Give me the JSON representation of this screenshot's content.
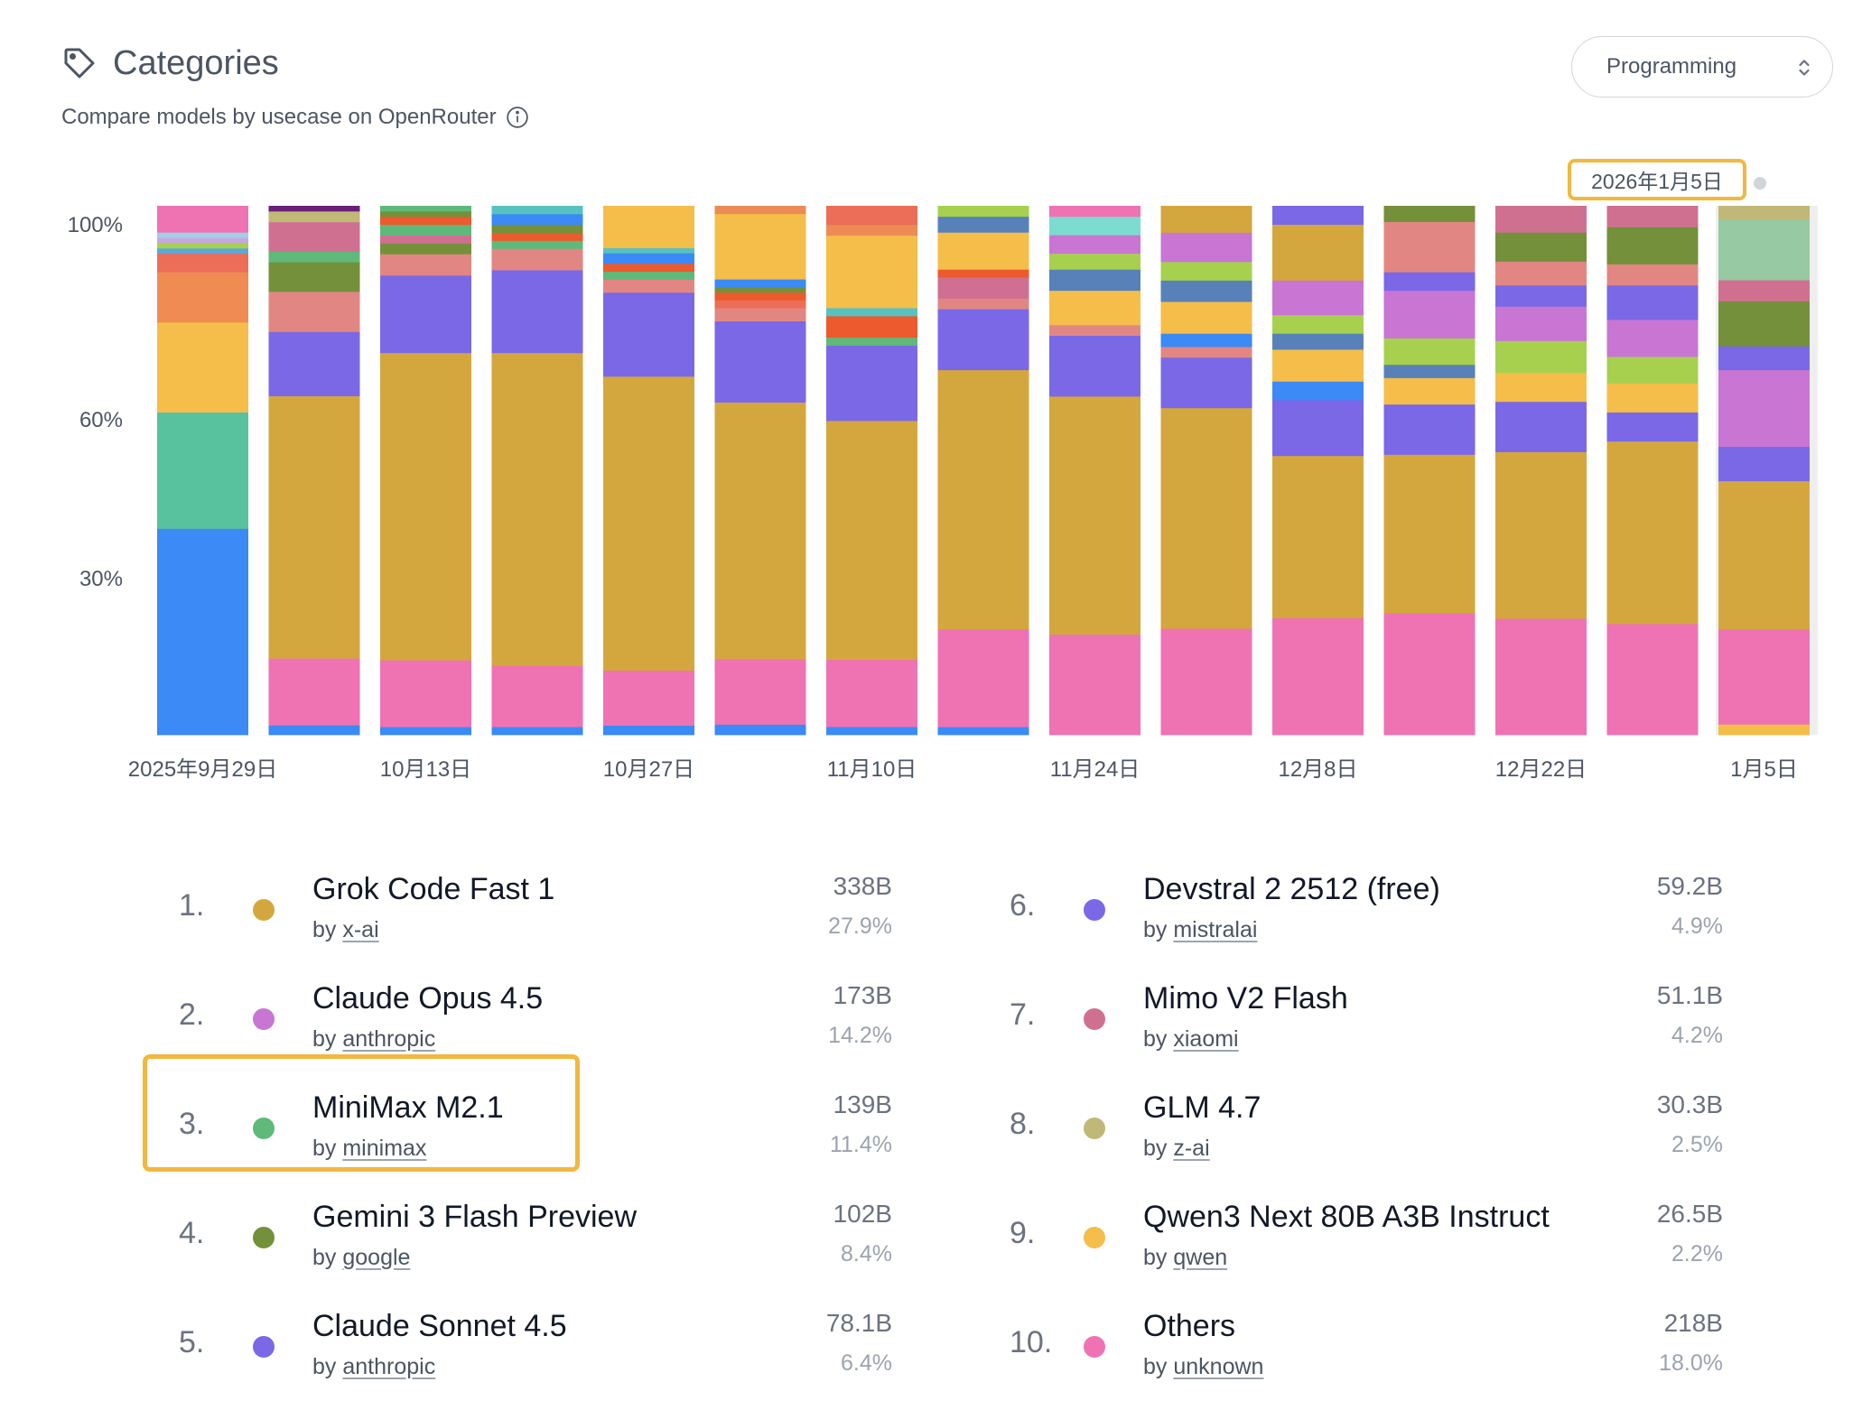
{
  "header": {
    "title": "Categories",
    "subtitle": "Compare models by usecase on OpenRouter",
    "select_value": "Programming",
    "tooltip_date": "2026年1月5日"
  },
  "chart_data": {
    "type": "bar",
    "stacked": true,
    "y_ticks": [
      "100%",
      "60%",
      "30%"
    ],
    "x_tick_labels": [
      "2025年9月29日",
      "10月13日",
      "10月27日",
      "11月10日",
      "11月24日",
      "12月8日",
      "12月22日",
      "1月5日"
    ],
    "bars": [
      {
        "segments": [
          [
            39,
            "#3b8af5"
          ],
          [
            22,
            "#58c29e"
          ],
          [
            17,
            "#f5bd4a"
          ],
          [
            9.5,
            "#f08b54"
          ],
          [
            3.5,
            "#ec6e58"
          ],
          [
            1,
            "#5ba8d8"
          ],
          [
            1,
            "#a7d04f"
          ],
          [
            1,
            "#c8a7e0"
          ],
          [
            1,
            "#9fd0e6"
          ],
          [
            5,
            "#ef72b3"
          ]
        ]
      },
      {
        "segments": [
          [
            1.8,
            "#3b8af5"
          ],
          [
            12.5,
            "#ef72b3"
          ],
          [
            49,
            "#d4a73e"
          ],
          [
            12,
            "#7a68e6"
          ],
          [
            7.5,
            "#e28683"
          ],
          [
            5.5,
            "#74903a"
          ],
          [
            2,
            "#5fb97a"
          ],
          [
            5.5,
            "#d07090"
          ],
          [
            2,
            "#c0b877"
          ],
          [
            1,
            "#6a2077"
          ]
        ]
      },
      {
        "segments": [
          [
            1.5,
            "#3b8af5"
          ],
          [
            12.5,
            "#ef72b3"
          ],
          [
            57.5,
            "#d4a73e"
          ],
          [
            14.5,
            "#7a68e6"
          ],
          [
            4,
            "#e28683"
          ],
          [
            2,
            "#74903a"
          ],
          [
            1.5,
            "#d07090"
          ],
          [
            2,
            "#5fb97a"
          ],
          [
            1.5,
            "#ec5a2e"
          ],
          [
            1,
            "#74903a"
          ],
          [
            1,
            "#5fb97a"
          ]
        ]
      },
      {
        "segments": [
          [
            1.5,
            "#3b8af5"
          ],
          [
            11.5,
            "#ef72b3"
          ],
          [
            58.5,
            "#d4a73e"
          ],
          [
            15.5,
            "#7a68e6"
          ],
          [
            4,
            "#e28683"
          ],
          [
            1.5,
            "#5fb97a"
          ],
          [
            1.5,
            "#ec5a2e"
          ],
          [
            1.5,
            "#74903a"
          ],
          [
            2,
            "#3b8af5"
          ],
          [
            1.5,
            "#58c2c2"
          ]
        ]
      },
      {
        "segments": [
          [
            1.8,
            "#3b8af5"
          ],
          [
            10.5,
            "#ef72b3"
          ],
          [
            56,
            "#d4a73e"
          ],
          [
            16,
            "#7a68e6"
          ],
          [
            2.5,
            "#e28683"
          ],
          [
            1.5,
            "#5fb97a"
          ],
          [
            1.5,
            "#ec5a2e"
          ],
          [
            2,
            "#3b8af5"
          ],
          [
            1,
            "#58c2c2"
          ],
          [
            8,
            "#f5bd4a"
          ]
        ]
      },
      {
        "segments": [
          [
            2,
            "#3b8af5"
          ],
          [
            12.5,
            "#ef72b3"
          ],
          [
            49,
            "#d4a73e"
          ],
          [
            15.5,
            "#7a68e6"
          ],
          [
            2.5,
            "#e28683"
          ],
          [
            1.5,
            "#ec6e58"
          ],
          [
            1.5,
            "#ec5a2e"
          ],
          [
            1,
            "#74903a"
          ],
          [
            1.5,
            "#3b8af5"
          ],
          [
            12.5,
            "#f5bd4a"
          ],
          [
            1.5,
            "#ec8b54"
          ]
        ]
      },
      {
        "segments": [
          [
            1.5,
            "#3b8af5"
          ],
          [
            12.5,
            "#ef72b3"
          ],
          [
            44.5,
            "#d4a73e"
          ],
          [
            14,
            "#7a68e6"
          ],
          [
            1.5,
            "#5fb97a"
          ],
          [
            4,
            "#ec5a2e"
          ],
          [
            1.5,
            "#58c2c2"
          ],
          [
            13.5,
            "#f5bd4a"
          ],
          [
            2,
            "#ec8b54"
          ],
          [
            3.5,
            "#ec6e58"
          ]
        ]
      },
      {
        "segments": [
          [
            1.5,
            "#3b8af5"
          ],
          [
            18.5,
            "#ef72b3"
          ],
          [
            49,
            "#d4a73e"
          ],
          [
            11.5,
            "#7a68e6"
          ],
          [
            2,
            "#e28683"
          ],
          [
            4,
            "#d07090"
          ],
          [
            1.5,
            "#ec5a2e"
          ],
          [
            7,
            "#f5bd4a"
          ],
          [
            3,
            "#5781b8"
          ],
          [
            2,
            "#a7d04f"
          ]
        ]
      },
      {
        "segments": [
          [
            19,
            "#ef72b3"
          ],
          [
            45,
            "#d4a73e"
          ],
          [
            11.5,
            "#7a68e6"
          ],
          [
            2,
            "#e28683"
          ],
          [
            6.5,
            "#f5bd4a"
          ],
          [
            4,
            "#5781b8"
          ],
          [
            3,
            "#a7d04f"
          ],
          [
            3.5,
            "#c875d4"
          ],
          [
            3.5,
            "#7ddbd0"
          ],
          [
            2,
            "#ef72b3"
          ]
        ]
      },
      {
        "segments": [
          [
            20,
            "#ef72b3"
          ],
          [
            41.5,
            "#d4a73e"
          ],
          [
            9.5,
            "#7a68e6"
          ],
          [
            2,
            "#e28683"
          ],
          [
            2.5,
            "#3b8af5"
          ],
          [
            6,
            "#f5bd4a"
          ],
          [
            4,
            "#5781b8"
          ],
          [
            3.5,
            "#a7d04f"
          ],
          [
            5.5,
            "#c875d4"
          ],
          [
            5,
            "#d4a73e"
          ]
        ]
      },
      {
        "segments": [
          [
            22,
            "#ef72b3"
          ],
          [
            30.5,
            "#d4a73e"
          ],
          [
            10.5,
            "#7a68e6"
          ],
          [
            3.5,
            "#3b8af5"
          ],
          [
            6,
            "#f5bd4a"
          ],
          [
            3,
            "#5781b8"
          ],
          [
            3.5,
            "#a7d04f"
          ],
          [
            6.5,
            "#c875d4"
          ],
          [
            10.5,
            "#d4a73e"
          ],
          [
            3.5,
            "#7a68e6"
          ]
        ]
      },
      {
        "segments": [
          [
            23,
            "#ef72b3"
          ],
          [
            30,
            "#d4a73e"
          ],
          [
            9.5,
            "#7a68e6"
          ],
          [
            5,
            "#f5bd4a"
          ],
          [
            2.5,
            "#5781b8"
          ],
          [
            5,
            "#a7d04f"
          ],
          [
            9,
            "#c875d4"
          ],
          [
            3.5,
            "#7a68e6"
          ],
          [
            9.5,
            "#e28683"
          ],
          [
            3,
            "#74903a"
          ]
        ]
      },
      {
        "segments": [
          [
            22,
            "#ef72b3"
          ],
          [
            31.5,
            "#d4a73e"
          ],
          [
            9.5,
            "#7a68e6"
          ],
          [
            5.5,
            "#f5bd4a"
          ],
          [
            6,
            "#a7d04f"
          ],
          [
            6.5,
            "#c875d4"
          ],
          [
            4,
            "#7a68e6"
          ],
          [
            4.5,
            "#e28683"
          ],
          [
            5.5,
            "#74903a"
          ],
          [
            5,
            "#d07090"
          ]
        ]
      },
      {
        "segments": [
          [
            21,
            "#ef72b3"
          ],
          [
            34.5,
            "#d4a73e"
          ],
          [
            5.5,
            "#7a68e6"
          ],
          [
            5.5,
            "#f5bd4a"
          ],
          [
            5,
            "#a7d04f"
          ],
          [
            7,
            "#c875d4"
          ],
          [
            6.5,
            "#7a68e6"
          ],
          [
            4,
            "#e28683"
          ],
          [
            7,
            "#74903a"
          ],
          [
            4,
            "#d07090"
          ]
        ]
      },
      {
        "segments": [
          [
            2,
            "#f5bd4a"
          ],
          [
            18,
            "#ef72b3"
          ],
          [
            28,
            "#d4a73e"
          ],
          [
            6.5,
            "#7a68e6"
          ],
          [
            14.5,
            "#c875d4"
          ],
          [
            4.5,
            "#7a68e6"
          ],
          [
            8.5,
            "#74903a"
          ],
          [
            4,
            "#d07090"
          ],
          [
            11.5,
            "#97c9a2"
          ],
          [
            2.5,
            "#c0b877"
          ]
        ]
      }
    ]
  },
  "legend": [
    {
      "rank": "1.",
      "name": "Grok Code Fast 1",
      "by": "by",
      "author": "x-ai",
      "tokens": "338B",
      "pct": "27.9%",
      "color": "#d4a73e"
    },
    {
      "rank": "2.",
      "name": "Claude Opus 4.5",
      "by": "by",
      "author": "anthropic",
      "tokens": "173B",
      "pct": "14.2%",
      "color": "#c875d4"
    },
    {
      "rank": "3.",
      "name": "MiniMax M2.1",
      "by": "by",
      "author": "minimax",
      "tokens": "139B",
      "pct": "11.4%",
      "color": "#5fb97a"
    },
    {
      "rank": "4.",
      "name": "Gemini 3 Flash Preview",
      "by": "by",
      "author": "google",
      "tokens": "102B",
      "pct": "8.4%",
      "color": "#74903a"
    },
    {
      "rank": "5.",
      "name": "Claude Sonnet 4.5",
      "by": "by",
      "author": "anthropic",
      "tokens": "78.1B",
      "pct": "6.4%",
      "color": "#7a68e6"
    },
    {
      "rank": "6.",
      "name": "Devstral 2 2512 (free)",
      "by": "by",
      "author": "mistralai",
      "tokens": "59.2B",
      "pct": "4.9%",
      "color": "#7a68e6"
    },
    {
      "rank": "7.",
      "name": "Mimo V2 Flash",
      "by": "by",
      "author": "xiaomi",
      "tokens": "51.1B",
      "pct": "4.2%",
      "color": "#d07090"
    },
    {
      "rank": "8.",
      "name": "GLM 4.7",
      "by": "by",
      "author": "z-ai",
      "tokens": "30.3B",
      "pct": "2.5%",
      "color": "#c0b877"
    },
    {
      "rank": "9.",
      "name": "Qwen3 Next 80B A3B Instruct",
      "by": "by",
      "author": "qwen",
      "tokens": "26.5B",
      "pct": "2.2%",
      "color": "#f5bd4a"
    },
    {
      "rank": "10.",
      "name": "Others",
      "by": "by",
      "author": "unknown",
      "tokens": "218B",
      "pct": "18.0%",
      "color": "#ef72b3"
    }
  ],
  "icons": {
    "header": "tag-icon",
    "subtitle": "info-icon",
    "select": "chevron-up-down-icon"
  }
}
